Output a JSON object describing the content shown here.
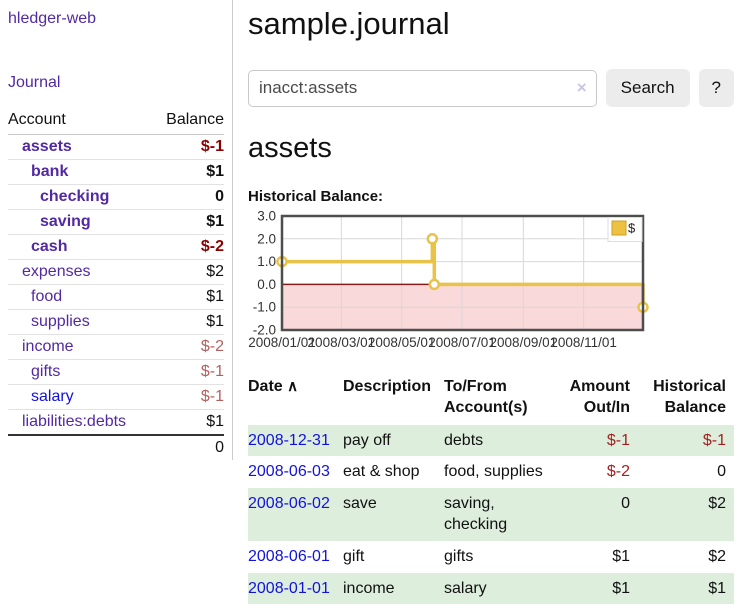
{
  "sidebar": {
    "brand": "hledger-web",
    "journal_link": "Journal",
    "accounts_table": {
      "headers": {
        "account": "Account",
        "balance": "Balance"
      },
      "rows": [
        {
          "name": "assets",
          "balance": "$-1"
        },
        {
          "name": "bank",
          "balance": "$1"
        },
        {
          "name": "checking",
          "balance": "0"
        },
        {
          "name": "saving",
          "balance": "$1"
        },
        {
          "name": "cash",
          "balance": "$-2"
        },
        {
          "name": "expenses",
          "balance": "$2"
        },
        {
          "name": "food",
          "balance": "$1"
        },
        {
          "name": "supplies",
          "balance": "$1"
        },
        {
          "name": "income",
          "balance": "$-2"
        },
        {
          "name": "gifts",
          "balance": "$-1"
        },
        {
          "name": "salary",
          "balance": "$-1"
        },
        {
          "name": "liabilities:debts",
          "balance": "$1"
        }
      ],
      "total": "0"
    }
  },
  "main": {
    "title": "sample.journal",
    "search": {
      "query": "inacct:assets",
      "clear_icon": "×",
      "search_label": "Search",
      "help_label": "?"
    },
    "account_heading": "assets",
    "chart_label": "Historical Balance:"
  },
  "chart_data": {
    "type": "line",
    "step": true,
    "title": "Historical Balance",
    "series": [
      {
        "name": "$",
        "color": "#e9c348",
        "points": [
          [
            "2008-01-01",
            1
          ],
          [
            "2008-06-01",
            2
          ],
          [
            "2008-06-03",
            0
          ],
          [
            "2008-12-31",
            -1
          ]
        ]
      }
    ],
    "x_ticks": [
      "2008/01/01",
      "2008/03/01",
      "2008/05/01",
      "2008/07/01",
      "2008/09/01",
      "2008/11/01"
    ],
    "y_ticks": [
      "3.0",
      "2.0",
      "1.0",
      "0.0",
      "-1.0",
      "-2.0"
    ],
    "ylim": [
      -2,
      3
    ],
    "xlim": [
      "2008-01-01",
      "2008-12-31"
    ],
    "legend_position": "top-right",
    "grid": true,
    "colors": {
      "negative_fill": "#f9d9d9",
      "zero_line": "#8b1a1a",
      "grid": "#d8d8d8",
      "border": "#4d4d4d",
      "tick_text": "#333333",
      "legend_fill": "#edc240",
      "legend_border": "#c9a227"
    }
  },
  "register": {
    "headers": {
      "date": "Date",
      "description": "Description",
      "accounts": "To/From Account(s)",
      "amount": "Amount Out/In",
      "balance": "Historical Balance"
    },
    "sort_icon": "∧",
    "rows": [
      {
        "date": "2008-12-31",
        "description": "pay off",
        "accounts": "debts",
        "amount": "$-1",
        "balance": "$-1"
      },
      {
        "date": "2008-06-03",
        "description": "eat & shop",
        "accounts": "food, supplies",
        "amount": "$-2",
        "balance": "0"
      },
      {
        "date": "2008-06-02",
        "description": "save",
        "accounts": "saving, checking",
        "amount": "0",
        "balance": "$2"
      },
      {
        "date": "2008-06-01",
        "description": "gift",
        "accounts": "gifts",
        "amount": "$1",
        "balance": "$2"
      },
      {
        "date": "2008-01-01",
        "description": "income",
        "accounts": "salary",
        "amount": "$1",
        "balance": "$1"
      }
    ]
  }
}
